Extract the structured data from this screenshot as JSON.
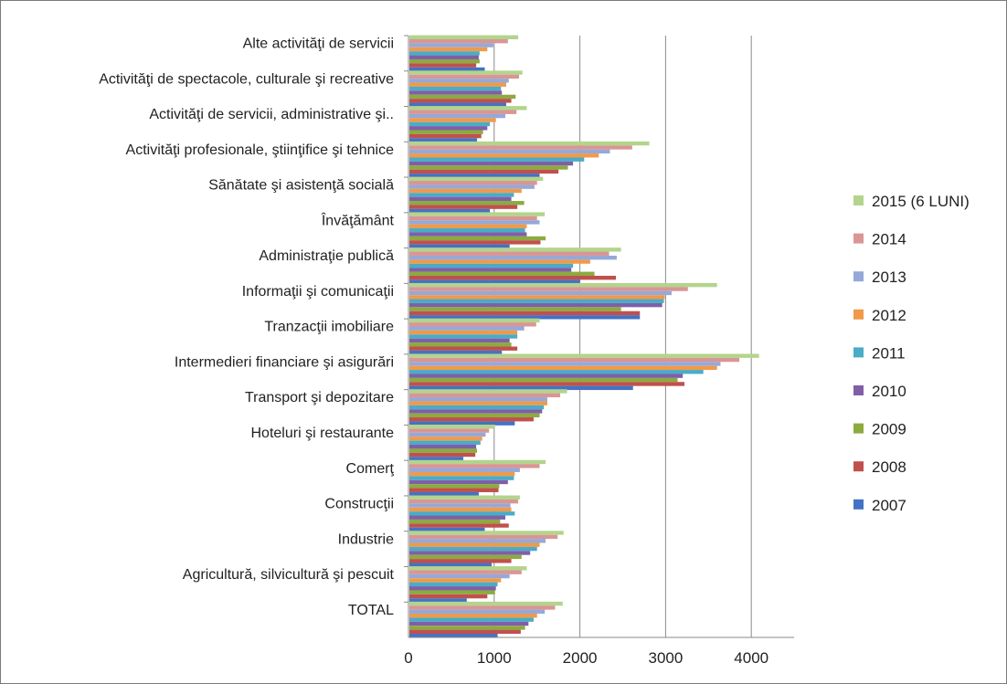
{
  "chart_data": {
    "type": "bar",
    "orientation": "horizontal",
    "title": "",
    "xlabel": "",
    "ylabel": "",
    "xlim": [
      0,
      4500
    ],
    "x_ticks": [
      0,
      1000,
      2000,
      3000,
      4000
    ],
    "x_tick_labels": [
      "0",
      "1000",
      "2000",
      "3000",
      "4000"
    ],
    "grid": "vertical major gridlines",
    "legend_position": "right",
    "categories": [
      "Alte activităţi de servicii",
      "Activităţi de spectacole, culturale şi recreative",
      "Activităţi de servicii, administrative şi..",
      "Activităţi profesionale, ştiinţifice şi tehnice",
      "Sănătate şi asistenţă socială",
      "Învăţământ",
      "Administraţie publică",
      "Informaţii şi comunicaţii",
      "Tranzacţii imobiliare",
      "Intermedieri financiare şi asigurări",
      "Transport şi depozitare",
      "Hoteluri şi restaurante",
      "Comerţ",
      "Construcţii",
      "Industrie",
      "Agricultură, silvicultură şi pescuit",
      "TOTAL"
    ],
    "series": [
      {
        "name": "2015 (6 LUNI)",
        "color": "#b3d48c",
        "values": [
          1280,
          1330,
          1380,
          2810,
          1570,
          1590,
          2480,
          3600,
          1530,
          4090,
          1850,
          1010,
          1600,
          1300,
          1810,
          1380,
          1800
        ]
      },
      {
        "name": "2014",
        "color": "#d99694",
        "values": [
          1160,
          1290,
          1260,
          2610,
          1500,
          1500,
          2340,
          3260,
          1490,
          3860,
          1770,
          940,
          1530,
          1280,
          1740,
          1320,
          1710
        ]
      },
      {
        "name": "2013",
        "color": "#95a9d8",
        "values": [
          990,
          1170,
          1130,
          2350,
          1470,
          1530,
          2430,
          3070,
          1350,
          3640,
          1620,
          900,
          1300,
          1190,
          1600,
          1180,
          1590
        ]
      },
      {
        "name": "2012",
        "color": "#f09a4a",
        "values": [
          920,
          1140,
          1020,
          2220,
          1320,
          1380,
          2120,
          2990,
          1270,
          3600,
          1620,
          860,
          1240,
          1200,
          1530,
          1080,
          1500
        ]
      },
      {
        "name": "2011",
        "color": "#4aacc6",
        "values": [
          830,
          1080,
          950,
          2050,
          1230,
          1360,
          1920,
          2980,
          1270,
          3440,
          1580,
          840,
          1230,
          1240,
          1500,
          1040,
          1460
        ]
      },
      {
        "name": "2010",
        "color": "#7f5fa8",
        "values": [
          820,
          1090,
          920,
          1920,
          1200,
          1380,
          1900,
          2960,
          1180,
          3200,
          1560,
          790,
          1160,
          1130,
          1420,
          1020,
          1400
        ]
      },
      {
        "name": "2009",
        "color": "#8cab3e",
        "values": [
          830,
          1250,
          870,
          1860,
          1350,
          1600,
          2170,
          2480,
          1200,
          3140,
          1530,
          800,
          1060,
          1070,
          1320,
          1010,
          1360
        ]
      },
      {
        "name": "2008",
        "color": "#c0504d",
        "values": [
          790,
          1200,
          850,
          1750,
          1270,
          1540,
          2420,
          2700,
          1270,
          3220,
          1460,
          780,
          1050,
          1170,
          1200,
          920,
          1310
        ]
      },
      {
        "name": "2007",
        "color": "#4472c4",
        "values": [
          890,
          1140,
          800,
          1530,
          950,
          1180,
          2000,
          2700,
          1090,
          2620,
          1240,
          640,
          820,
          890,
          970,
          680,
          1040
        ]
      }
    ]
  }
}
